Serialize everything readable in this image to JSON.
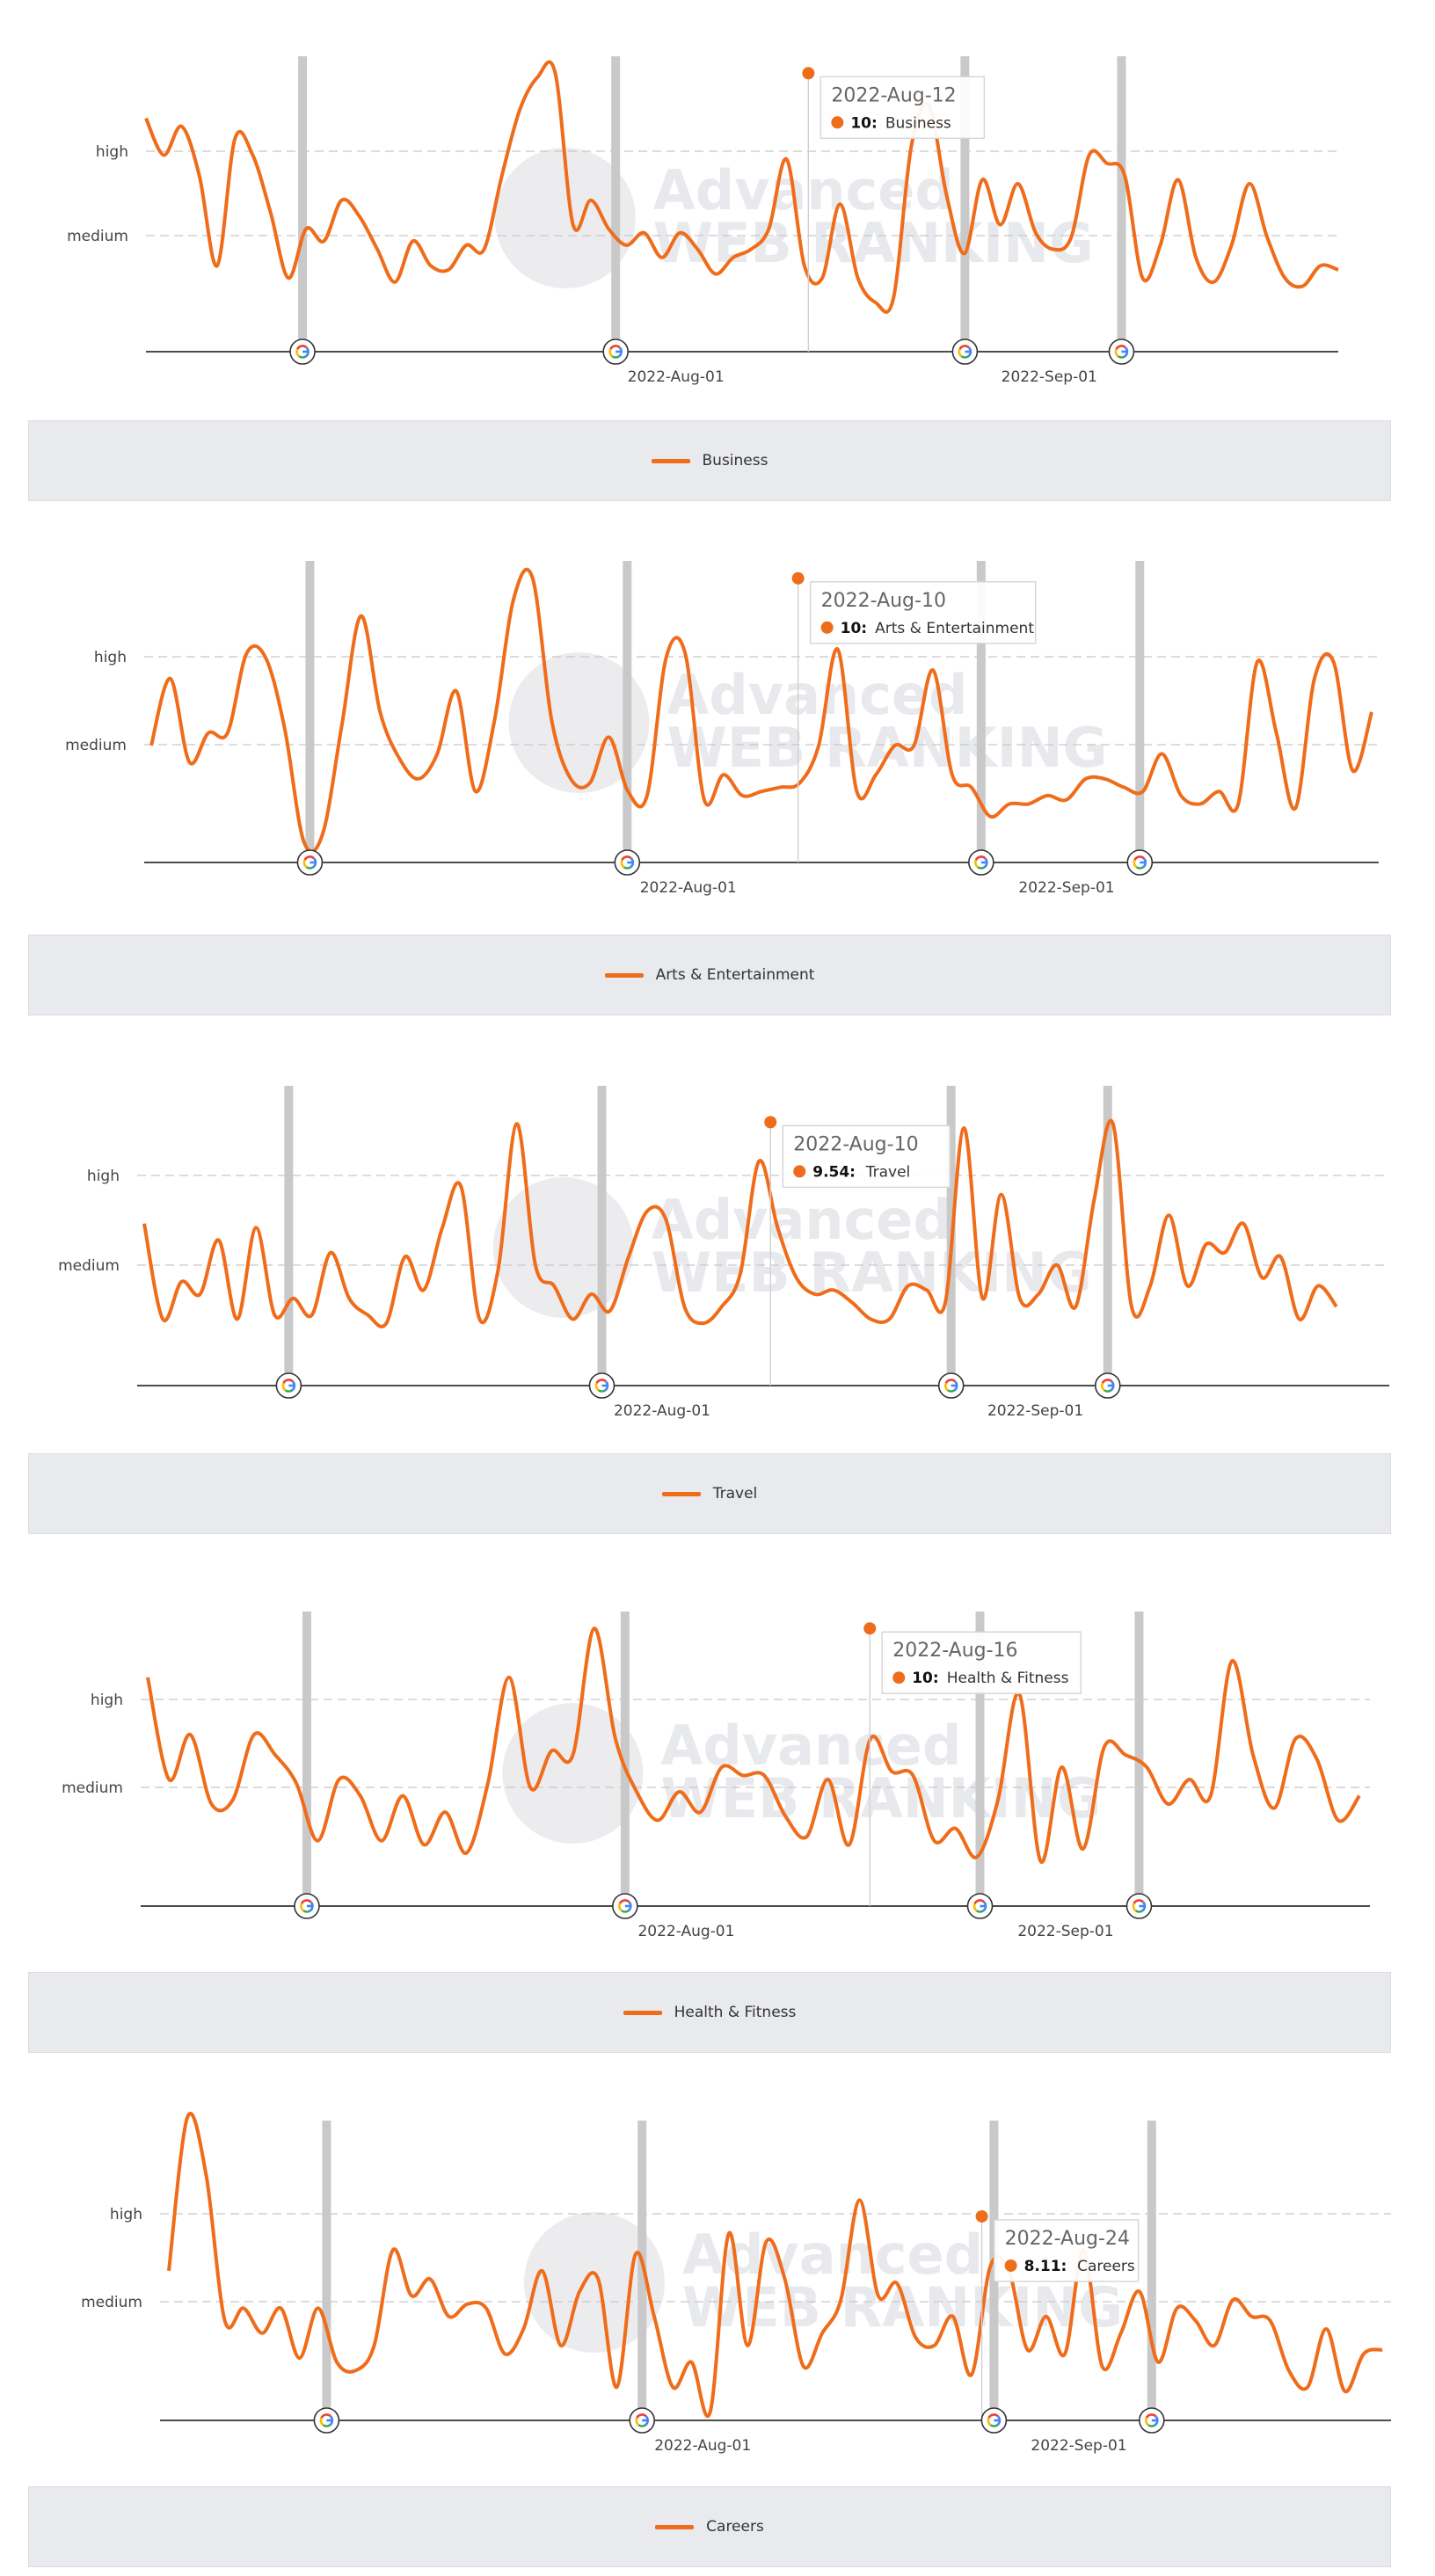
{
  "colors": {
    "line": "#ef6c1a",
    "update_bar": "#c9c9c9",
    "grid": "#c8c8c8",
    "axis": "#333333",
    "legend_bg": "#e9eaed"
  },
  "watermark": {
    "line1": "Advanced",
    "line2": "WEB RANKING"
  },
  "marker_icon": "google-g-icon",
  "chart_data": [
    {
      "type": "line",
      "series": [
        {
          "name": "Business",
          "values": [
            8.9,
            8.0,
            8.7,
            7.5,
            5.3,
            8.4,
            8.0,
            6.6,
            5.0,
            6.2,
            5.9,
            6.9,
            6.5,
            5.7,
            4.9,
            5.9,
            5.3,
            5.2,
            5.8,
            5.7,
            7.5,
            9.1,
            9.9,
            10,
            6.3,
            6.9,
            6.2,
            5.8,
            6.1,
            5.5,
            6.1,
            5.7,
            5.1,
            5.5,
            5.7,
            6.2,
            7.9,
            5.3,
            5.0,
            6.8,
            5.0,
            4.4,
            4.5,
            8.2,
            9.2,
            7.0,
            5.6,
            7.4,
            6.3,
            7.3,
            6.1,
            5.7,
            6.0,
            8.0,
            7.8,
            7.5,
            5.0,
            5.8,
            7.4,
            5.5,
            4.9,
            5.8,
            7.3,
            6.0,
            5.0,
            4.8,
            5.3,
            5.2
          ]
        }
      ],
      "y_labels": [
        "high",
        "medium"
      ],
      "ylim": [
        3.2,
        10.5
      ],
      "x_ticks": [
        "2022-Aug-01",
        "2022-Sep-01"
      ],
      "x_range": [
        "2022-Jun-18",
        "2022-Sep-25"
      ],
      "google_updates": [
        "2022-Jul-01",
        "2022-Jul-27",
        "2022-Aug-25",
        "2022-Sep-07"
      ],
      "tooltip": {
        "date": "2022-Aug-12",
        "value": "10:",
        "name": "Business"
      },
      "legend": "Business"
    },
    {
      "type": "line",
      "series": [
        {
          "name": "Arts & Entertainment",
          "values": [
            6.0,
            7.6,
            5.6,
            6.3,
            6.3,
            8.2,
            8.1,
            6.4,
            3.7,
            3.9,
            6.5,
            9.1,
            6.8,
            5.7,
            5.2,
            5.8,
            7.3,
            4.9,
            6.6,
            9.5,
            10,
            6.6,
            5.2,
            5.1,
            6.2,
            4.9,
            4.8,
            8.1,
            8.2,
            4.7,
            5.3,
            4.8,
            4.9,
            5.0,
            5.1,
            6.0,
            8.3,
            4.9,
            5.3,
            6.0,
            6.0,
            7.8,
            5.3,
            5.0,
            4.3,
            4.6,
            4.6,
            4.8,
            4.7,
            5.2,
            5.2,
            5.0,
            4.9,
            5.8,
            4.8,
            4.6,
            4.9,
            4.6,
            8.0,
            6.3,
            4.5,
            7.6,
            8.0,
            5.4,
            6.8
          ]
        }
      ],
      "y_labels": [
        "high",
        "medium"
      ],
      "ylim": [
        3.2,
        10.5
      ],
      "x_ticks": [
        "2022-Aug-01",
        "2022-Sep-01"
      ],
      "x_range": [
        "2022-Jun-18",
        "2022-Sep-26"
      ],
      "google_updates": [
        "2022-Jul-01",
        "2022-Jul-27",
        "2022-Aug-25",
        "2022-Sep-07"
      ],
      "tooltip": {
        "date": "2022-Aug-10",
        "value": "10:",
        "name": "Arts & Entertainment"
      },
      "legend": "Arts & Entertainment"
    },
    {
      "type": "line",
      "series": [
        {
          "name": "Travel",
          "values": [
            7.1,
            4.8,
            5.7,
            5.4,
            6.7,
            4.8,
            7.0,
            4.9,
            5.3,
            4.9,
            6.4,
            5.3,
            4.9,
            4.7,
            6.3,
            5.5,
            7.0,
            8.0,
            4.8,
            6.0,
            9.5,
            6.1,
            5.6,
            4.8,
            5.4,
            5.0,
            6.3,
            7.4,
            7.2,
            5.1,
            4.7,
            5.1,
            5.9,
            8.6,
            7.0,
            5.8,
            5.4,
            5.5,
            5.2,
            4.8,
            4.8,
            5.6,
            5.5,
            5.2,
            9.4,
            5.3,
            7.8,
            5.3,
            5.4,
            6.1,
            5.1,
            7.7,
            9.5,
            5.1,
            5.6,
            7.3,
            5.6,
            6.6,
            6.4,
            7.1,
            5.8,
            6.3,
            4.8,
            5.6,
            5.1
          ]
        }
      ],
      "y_labels": [
        "high",
        "medium"
      ],
      "ylim": [
        3.2,
        10.5
      ],
      "x_ticks": [
        "2022-Aug-01",
        "2022-Sep-01"
      ],
      "x_range": [
        "2022-Jun-19",
        "2022-Sep-26"
      ],
      "google_updates": [
        "2022-Jul-01",
        "2022-Jul-27",
        "2022-Aug-25",
        "2022-Sep-07"
      ],
      "tooltip": {
        "date": "2022-Aug-10",
        "value": "9.54:",
        "name": "Travel"
      },
      "legend": "Travel"
    },
    {
      "type": "line",
      "series": [
        {
          "name": "Health & Fitness",
          "values": [
            8.8,
            6.3,
            7.4,
            5.7,
            5.8,
            7.4,
            6.9,
            6.2,
            4.8,
            6.3,
            5.9,
            4.8,
            5.9,
            4.7,
            5.5,
            4.5,
            6.2,
            8.8,
            6.1,
            7.0,
            6.9,
            10,
            7.3,
            6.0,
            5.3,
            6.0,
            5.5,
            6.6,
            6.4,
            6.4,
            5.4,
            4.9,
            6.3,
            4.7,
            7.3,
            6.5,
            6.4,
            4.8,
            5.1,
            4.4,
            5.8,
            8.4,
            4.3,
            6.6,
            4.6,
            7.1,
            6.9,
            6.6,
            5.7,
            6.3,
            5.9,
            9.2,
            6.9,
            5.6,
            7.3,
            6.8,
            5.3,
            5.9
          ]
        }
      ],
      "y_labels": [
        "high",
        "medium"
      ],
      "ylim": [
        3.2,
        10.5
      ],
      "x_ticks": [
        "2022-Aug-01",
        "2022-Sep-01"
      ],
      "x_range": [
        "2022-Jun-18",
        "2022-Sep-25"
      ],
      "google_updates": [
        "2022-Jul-01",
        "2022-Jul-27",
        "2022-Aug-25",
        "2022-Sep-07"
      ],
      "tooltip": {
        "date": "2022-Aug-16",
        "value": "10:",
        "name": "Health & Fitness"
      },
      "legend": "Health & Fitness"
    },
    {
      "type": "line",
      "series": [
        {
          "name": "Careers",
          "values": [
            6.8,
            10.5,
            9.1,
            5.6,
            5.9,
            5.3,
            5.9,
            4.7,
            5.9,
            4.6,
            4.4,
            5.0,
            7.3,
            6.2,
            6.6,
            5.7,
            6.0,
            5.9,
            4.8,
            5.4,
            6.8,
            5.0,
            6.3,
            6.6,
            4.0,
            7.2,
            5.7,
            4.0,
            4.6,
            3.4,
            7.7,
            5.0,
            7.5,
            6.6,
            4.5,
            5.3,
            6.1,
            8.5,
            6.2,
            6.5,
            5.2,
            5.0,
            5.7,
            4.3,
            6.9,
            6.8,
            4.9,
            5.7,
            4.8,
            7.3,
            4.5,
            5.3,
            6.3,
            4.6,
            5.9,
            5.6,
            5.0,
            6.1,
            5.7,
            5.6,
            4.4,
            4.0,
            5.4,
            3.9,
            4.8,
            4.9
          ]
        }
      ],
      "y_labels": [
        "high",
        "medium"
      ],
      "ylim": [
        3.2,
        10.5
      ],
      "x_ticks": [
        "2022-Aug-01",
        "2022-Sep-01"
      ],
      "x_range": [
        "2022-Jun-18",
        "2022-Sep-26"
      ],
      "google_updates": [
        "2022-Jul-01",
        "2022-Jul-27",
        "2022-Aug-25",
        "2022-Sep-07"
      ],
      "tooltip": {
        "date": "2022-Aug-24",
        "value": "8.11:",
        "name": "Careers"
      },
      "legend": "Careers"
    }
  ]
}
